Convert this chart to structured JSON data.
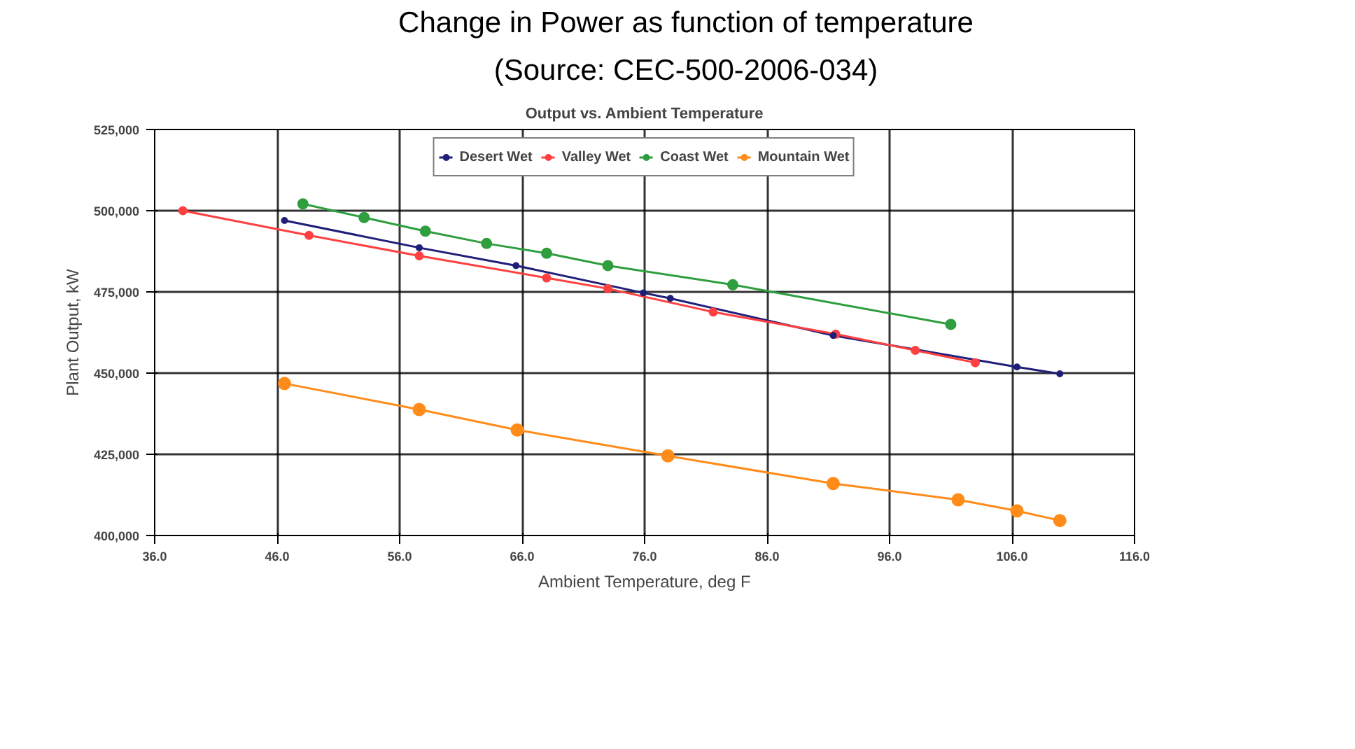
{
  "chart_data": {
    "type": "line",
    "title": "Change in Power as function of temperature",
    "subtitle": "(Source: CEC-500-2006-034)",
    "annotations": [
      "Output vs. Ambient Temperature"
    ],
    "xlabel": "Ambient Temperature, deg F",
    "ylabel": "Plant Output, kW",
    "xlim": [
      36,
      116
    ],
    "ylim": [
      400000,
      525000
    ],
    "xticks": [
      {
        "value": 36,
        "label": "36.0"
      },
      {
        "value": 46,
        "label": "46.0"
      },
      {
        "value": 56,
        "label": "56.0"
      },
      {
        "value": 66,
        "label": "66.0"
      },
      {
        "value": 76,
        "label": "76.0"
      },
      {
        "value": 86,
        "label": "86.0"
      },
      {
        "value": 96,
        "label": "96.0"
      },
      {
        "value": 106,
        "label": "106.0"
      },
      {
        "value": 116,
        "label": "116.0"
      }
    ],
    "yticks": [
      {
        "value": 400000,
        "label": "400,000"
      },
      {
        "value": 425000,
        "label": "425,000"
      },
      {
        "value": 450000,
        "label": "450,000"
      },
      {
        "value": 475000,
        "label": "475,000"
      },
      {
        "value": 500000,
        "label": "500,000"
      },
      {
        "value": 525000,
        "label": "525,000"
      }
    ],
    "grid": true,
    "legend": "top",
    "marker": "circle",
    "line_style": "solid",
    "series": [
      {
        "name": "Desert Wet",
        "color": "#1f1f7a",
        "x": [
          46.6,
          57.6,
          65.5,
          75.9,
          78.1,
          91.4,
          106.4,
          109.9
        ],
        "values": [
          497000,
          488600,
          483100,
          474700,
          473000,
          461600,
          451900,
          449800
        ]
      },
      {
        "name": "Valley Wet",
        "color": "#ff4040",
        "x": [
          38.3,
          48.6,
          57.6,
          68.0,
          73.0,
          81.6,
          91.6,
          98.1,
          103.0
        ],
        "values": [
          500000,
          492400,
          486100,
          479300,
          476000,
          468800,
          462000,
          457000,
          453200
        ]
      },
      {
        "name": "Coast Wet",
        "color": "#2e9e3e",
        "x": [
          48.1,
          53.1,
          58.1,
          63.1,
          68.0,
          73.0,
          83.2,
          101.0
        ],
        "values": [
          502100,
          497900,
          493700,
          489900,
          486900,
          483100,
          477200,
          465000
        ]
      },
      {
        "name": "Mountain Wet",
        "color": "#ff8c1a",
        "x": [
          46.6,
          57.6,
          65.6,
          77.9,
          91.4,
          101.6,
          106.4,
          109.9
        ],
        "values": [
          446800,
          438800,
          432500,
          424500,
          416000,
          411000,
          407600,
          404600
        ]
      }
    ]
  }
}
